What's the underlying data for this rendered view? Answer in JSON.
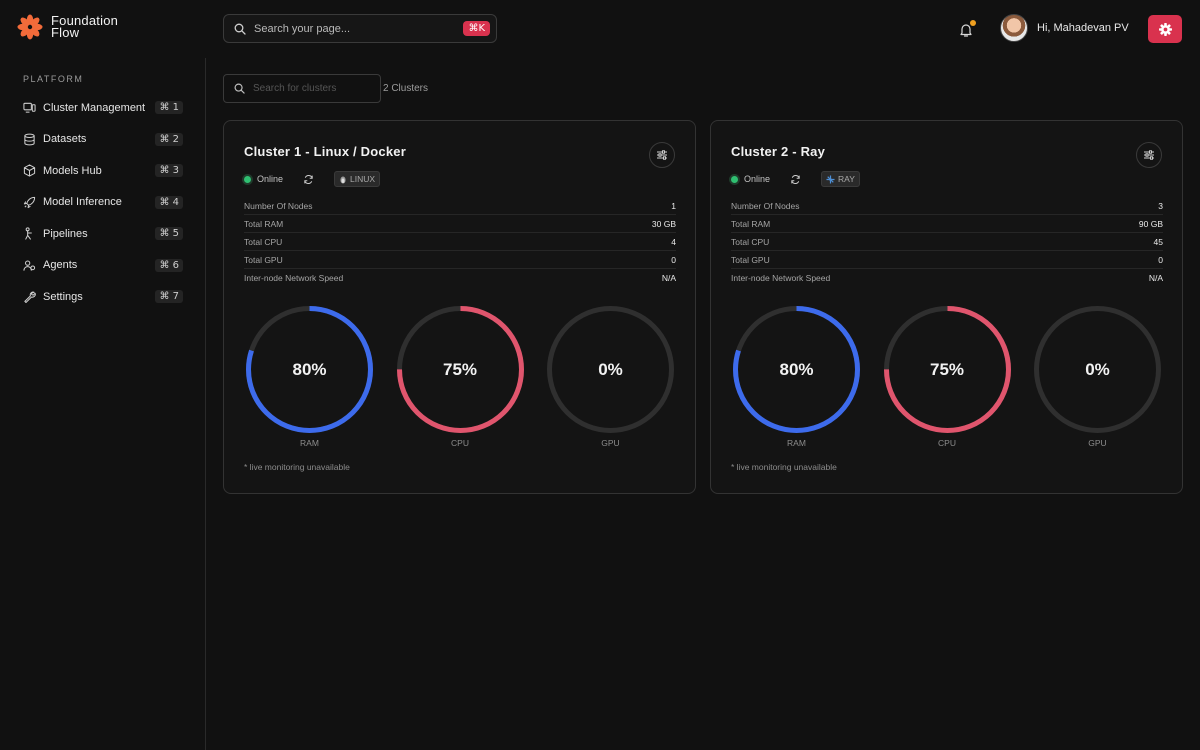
{
  "brand": {
    "line1": "Foundation",
    "line2": "Flow",
    "accent": "#f26b3a"
  },
  "search": {
    "placeholder": "Search your page...",
    "shortcut": "⌘K"
  },
  "user": {
    "greeting": "Hi, Mahadevan PV"
  },
  "colors": {
    "accent": "#d9324e",
    "ram": "#3d6bec",
    "cpu": "#e0556d",
    "track": "#2f2f2f",
    "online": "#2fbf71"
  },
  "sidebar": {
    "heading": "PLATFORM",
    "items": [
      {
        "label": "Cluster Management",
        "shortcut": "⌘ 1",
        "icon": "cluster-icon"
      },
      {
        "label": "Datasets",
        "shortcut": "⌘ 2",
        "icon": "database-icon"
      },
      {
        "label": "Models Hub",
        "shortcut": "⌘ 3",
        "icon": "cube-icon"
      },
      {
        "label": "Model Inference",
        "shortcut": "⌘ 4",
        "icon": "rocket-icon"
      },
      {
        "label": "Pipelines",
        "shortcut": "⌘ 5",
        "icon": "pipeline-icon"
      },
      {
        "label": "Agents",
        "shortcut": "⌘ 6",
        "icon": "agents-icon"
      },
      {
        "label": "Settings",
        "shortcut": "⌘ 7",
        "icon": "wrench-icon"
      }
    ]
  },
  "main": {
    "cluster_search_placeholder": "Search for clusters",
    "cluster_count": "2 Clusters",
    "clusters": [
      {
        "title": "Cluster 1 - Linux / Docker",
        "status": "Online",
        "tag": "LINUX",
        "stats": [
          {
            "label": "Number Of Nodes",
            "value": "1"
          },
          {
            "label": "Total RAM",
            "value": "30 GB"
          },
          {
            "label": "Total CPU",
            "value": "4"
          },
          {
            "label": "Total GPU",
            "value": "0"
          },
          {
            "label": "Inter-node Network Speed",
            "value": "N/A"
          }
        ],
        "gauges": [
          {
            "label": "RAM",
            "display": "80%",
            "percent": 80
          },
          {
            "label": "CPU",
            "display": "75%",
            "percent": 75
          },
          {
            "label": "GPU",
            "display": "0%",
            "percent": 0
          }
        ],
        "note": "* live monitoring unavailable"
      },
      {
        "title": "Cluster 2 - Ray",
        "status": "Online",
        "tag": "RAY",
        "stats": [
          {
            "label": "Number Of Nodes",
            "value": "3"
          },
          {
            "label": "Total RAM",
            "value": "90 GB"
          },
          {
            "label": "Total CPU",
            "value": "45"
          },
          {
            "label": "Total GPU",
            "value": "0"
          },
          {
            "label": "Inter-node Network Speed",
            "value": "N/A"
          }
        ],
        "gauges": [
          {
            "label": "RAM",
            "display": "80%",
            "percent": 80
          },
          {
            "label": "CPU",
            "display": "75%",
            "percent": 75
          },
          {
            "label": "GPU",
            "display": "0%",
            "percent": 0
          }
        ],
        "note": "* live monitoring unavailable"
      }
    ]
  }
}
